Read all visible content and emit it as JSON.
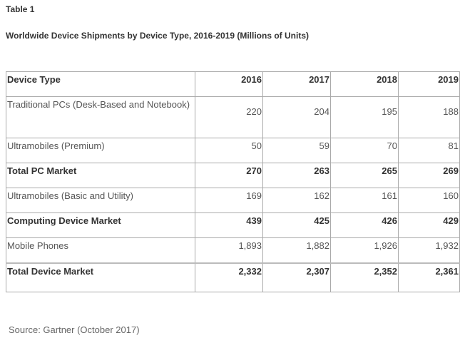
{
  "title": "Table 1",
  "subtitle": "Worldwide Device Shipments by Device Type, 2016-2019 (Millions of Units)",
  "table": {
    "headers": [
      "Device Type",
      "2016",
      "2017",
      "2018",
      "2019"
    ],
    "rows": [
      {
        "label": "Traditional PCs (Desk-Based and Notebook)",
        "values": [
          "220",
          "204",
          "195",
          "188"
        ],
        "bold": false
      },
      {
        "label": "Ultramobiles (Premium)",
        "values": [
          "50",
          "59",
          "70",
          "81"
        ],
        "bold": false
      },
      {
        "label": "Total PC Market",
        "values": [
          "270",
          "263",
          "265",
          "269"
        ],
        "bold": true
      },
      {
        "label": "Ultramobiles (Basic and Utility)",
        "values": [
          "169",
          "162",
          "161",
          "160"
        ],
        "bold": false
      },
      {
        "label": "Computing Device Market",
        "values": [
          "439",
          "425",
          "426",
          "429"
        ],
        "bold": true
      },
      {
        "label": "Mobile Phones",
        "values": [
          "1,893",
          "1,882",
          "1,926",
          "1,932"
        ],
        "bold": false
      },
      {
        "label": "Total Device Market",
        "values": [
          "2,332",
          "2,307",
          "2,352",
          "2,361"
        ],
        "bold": true
      }
    ]
  },
  "source": "Source: Gartner (October 2017)"
}
